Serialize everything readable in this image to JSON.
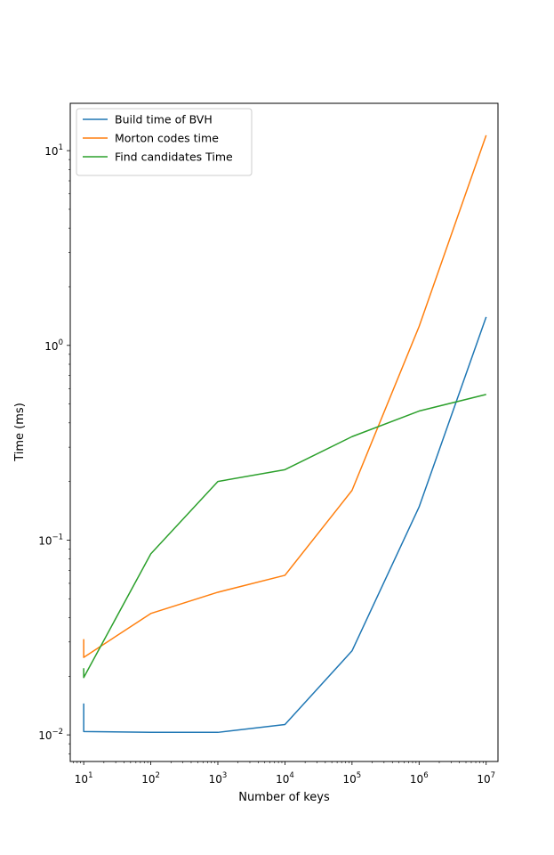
{
  "chart_data": {
    "type": "line",
    "xlabel": "Number of keys",
    "ylabel": "Time (ms)",
    "xscale": "log",
    "yscale": "log",
    "xlim": [
      6.3,
      15000000
    ],
    "ylim": [
      0.0073,
      17.5
    ],
    "grid": false,
    "legend_position": "top-left",
    "x_ticks": [
      {
        "base": "10",
        "exp": "1",
        "value": 10
      },
      {
        "base": "10",
        "exp": "2",
        "value": 100
      },
      {
        "base": "10",
        "exp": "3",
        "value": 1000
      },
      {
        "base": "10",
        "exp": "4",
        "value": 10000
      },
      {
        "base": "10",
        "exp": "5",
        "value": 100000
      },
      {
        "base": "10",
        "exp": "6",
        "value": 1000000
      },
      {
        "base": "10",
        "exp": "7",
        "value": 10000000
      }
    ],
    "y_ticks": [
      {
        "base": "10",
        "exp": "−2",
        "value": 0.01
      },
      {
        "base": "10",
        "exp": "−1",
        "value": 0.1
      },
      {
        "base": "10",
        "exp": "0",
        "value": 1
      },
      {
        "base": "10",
        "exp": "1",
        "value": 10
      }
    ],
    "series": [
      {
        "name": "Build time of BVH",
        "color": "#1f77b4",
        "x": [
          10,
          10,
          100,
          1000,
          10000,
          100000,
          1000000,
          10000000
        ],
        "y": [
          0.0145,
          0.0104,
          0.0103,
          0.0103,
          0.0113,
          0.027,
          0.148,
          1.4
        ]
      },
      {
        "name": "Morton codes time",
        "color": "#ff7f0e",
        "x": [
          10,
          10,
          100,
          1000,
          10000,
          100000,
          1000000,
          10000000
        ],
        "y": [
          0.031,
          0.025,
          0.042,
          0.054,
          0.066,
          0.18,
          1.25,
          12.0
        ]
      },
      {
        "name": "Find candidates Time",
        "color": "#2ca02c",
        "x": [
          10,
          10,
          100,
          1000,
          10000,
          100000,
          1000000,
          10000000
        ],
        "y": [
          0.022,
          0.0197,
          0.085,
          0.2,
          0.23,
          0.34,
          0.46,
          0.56
        ]
      }
    ]
  }
}
